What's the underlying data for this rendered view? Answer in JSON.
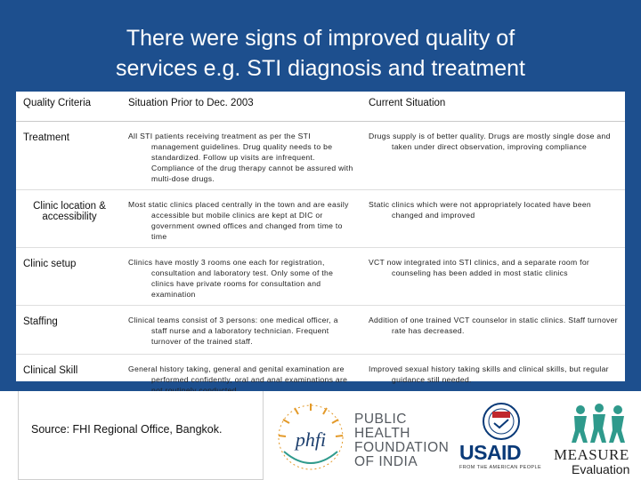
{
  "slide": {
    "title_line1": "There were signs of improved quality of",
    "title_line2": "services e.g. STI diagnosis and treatment"
  },
  "table": {
    "headers": [
      "Quality Criteria",
      "Situation Prior to  Dec. 2003",
      "Current Situation"
    ],
    "rows": [
      {
        "criteria": "Treatment",
        "prior": "All STI patients receiving treatment as per the STI management guidelines. Drug quality needs to be standardized. Follow up visits are infrequent. Compliance of the drug therapy cannot be assured with multi-dose drugs.",
        "current": "Drugs supply is of better quality. Drugs are mostly single dose and taken under direct observation, improving compliance"
      },
      {
        "criteria": "Clinic  location  &  accessibility",
        "prior": "Most static clinics placed centrally in the town and are easily accessible but mobile clinics are kept at DIC or government owned offices and changed from time to time",
        "current": "Static clinics which were not appropriately located have been changed and improved"
      },
      {
        "criteria": "Clinic setup",
        "prior": "Clinics  have  mostly  3  rooms  one  each  for registration, consultation and laboratory test. Only some of the clinics have private rooms for consultation and examination",
        "current": "VCT now integrated into STI clinics, and a separate room for counseling has been added in most static clinics"
      },
      {
        "criteria": "Staffing",
        "prior": "Clinical teams consist of 3 persons: one medical officer, a staff nurse and a laboratory technician. Frequent turnover of the trained staff.",
        "current": "Addition of one trained VCT counselor in static clinics. Staff turnover rate has decreased."
      },
      {
        "criteria": "Clinical Skill",
        "prior": "General history taking, general and genital examination are performed confidently, oral and anal examinations are not routinely conducted",
        "current": "Improved sexual history taking skills and clinical skills, but regular guidance still needed."
      }
    ]
  },
  "footer": {
    "source": "Source: FHI Regional Office, Bangkok.",
    "phfi_line1": "PUBLIC",
    "phfi_line2": "HEALTH",
    "phfi_line3": "FOUNDATION",
    "phfi_line4": "OF INDIA",
    "phfi_badge_text": "phfi",
    "usaid_word": "USAID",
    "usaid_tagline": "FROM THE AMERICAN PEOPLE",
    "measure_word": "MEASURE",
    "measure_sub": "Evaluation"
  },
  "colors": {
    "slide_bg": "#1d4f8e",
    "usaid_blue": "#0a3a78",
    "measure_green": "#2f9a8c",
    "phfi_orange": "#e39a2a"
  }
}
